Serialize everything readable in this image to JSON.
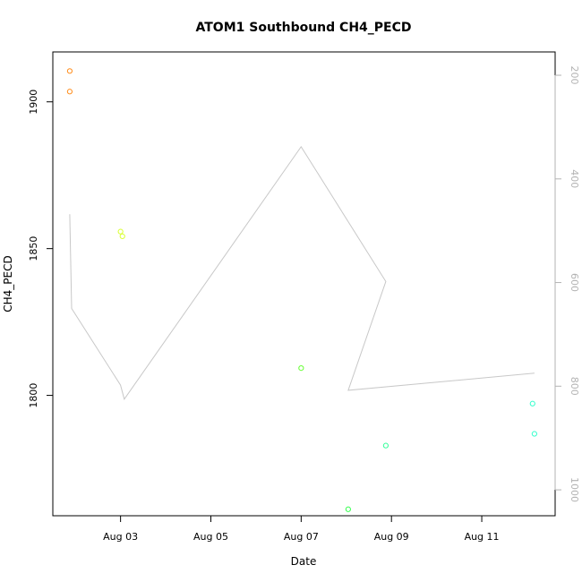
{
  "chart_data": {
    "type": "scatter",
    "title": "ATOM1 Southbound CH4_PECD",
    "xlabel": "Date",
    "ylabel": "CH4_PECD",
    "x_ticks": [
      "Aug 03",
      "Aug 05",
      "Aug 07",
      "Aug 09",
      "Aug 11"
    ],
    "x_tick_dates": [
      "2016-08-03",
      "2016-08-05",
      "2016-08-07",
      "2016-08-09",
      "2016-08-11"
    ],
    "xlim": [
      "2016-08-01 12:00",
      "2016-08-12 15:00"
    ],
    "ylim": [
      1759,
      1917
    ],
    "y_ticks": [
      1800,
      1850,
      1900
    ],
    "points": [
      {
        "x": "2016-08-01 21:00",
        "y": 1910.5,
        "color": "#ff8c1a"
      },
      {
        "x": "2016-08-01 21:00",
        "y": 1903.5,
        "color": "#ff8c1a"
      },
      {
        "x": "2016-08-03 00:00",
        "y": 1855.8,
        "color": "#d9ff33"
      },
      {
        "x": "2016-08-03 01:00",
        "y": 1854.2,
        "color": "#d9ff33"
      },
      {
        "x": "2016-08-07 00:00",
        "y": 1809.3,
        "color": "#66ff33"
      },
      {
        "x": "2016-08-08 01:00",
        "y": 1761.2,
        "color": "#33ff4d"
      },
      {
        "x": "2016-08-08 21:00",
        "y": 1782.9,
        "color": "#33ff99"
      },
      {
        "x": "2016-08-12 03:00",
        "y": 1797.2,
        "color": "#33ffcc"
      },
      {
        "x": "2016-08-12 04:00",
        "y": 1786.9,
        "color": "#33ffcc"
      }
    ],
    "secondary_axis": {
      "side": "right",
      "ylim": [
        1050,
        155
      ],
      "y_ticks": [
        200,
        400,
        600,
        800,
        1000
      ],
      "line_color": "#c8c8c8",
      "line": [
        {
          "x": "2016-08-01 21:00",
          "y": 468
        },
        {
          "x": "2016-08-01 22:00",
          "y": 650
        },
        {
          "x": "2016-08-03 00:00",
          "y": 798
        },
        {
          "x": "2016-08-03 02:00",
          "y": 825
        },
        {
          "x": "2016-08-07 00:00",
          "y": 338
        },
        {
          "x": "2016-08-08 21:00",
          "y": 598
        },
        {
          "x": "2016-08-08 01:00",
          "y": 808
        },
        {
          "x": "2016-08-12 04:00",
          "y": 775
        }
      ]
    }
  }
}
